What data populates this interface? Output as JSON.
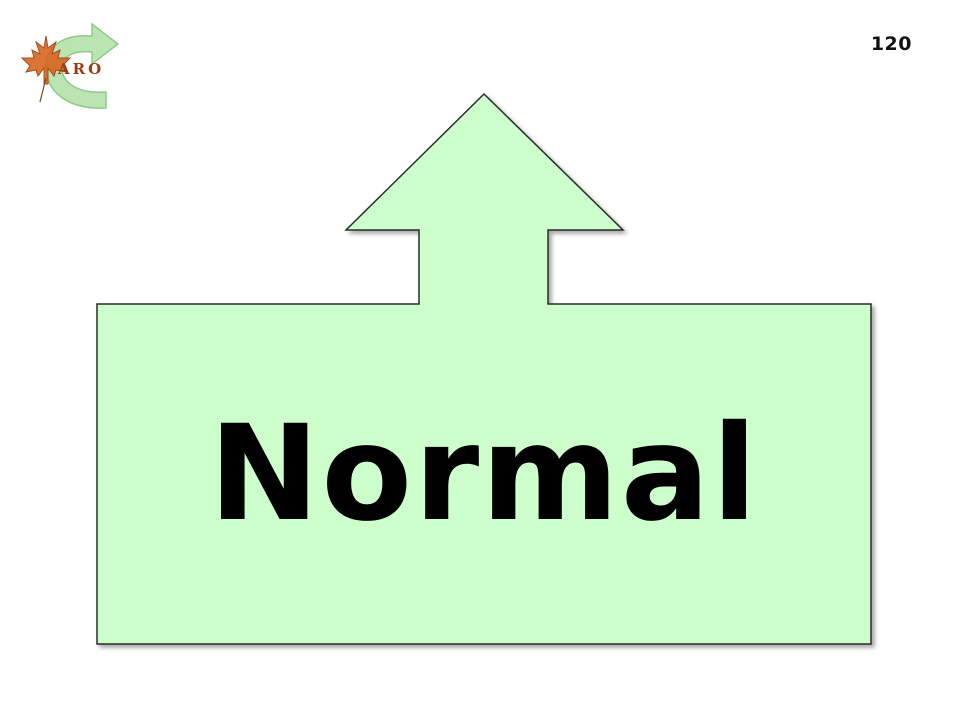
{
  "slide": {
    "number": "120",
    "word": "Normal"
  },
  "logo": {
    "text": "ARO",
    "icon": "maple-leaf-circular-arrow-logo"
  },
  "colors": {
    "shape_fill": "#ccffcc",
    "shape_stroke": "#2b2b2b",
    "arrow_green": "#a8dca0",
    "leaf_orange": "#d9651e"
  }
}
